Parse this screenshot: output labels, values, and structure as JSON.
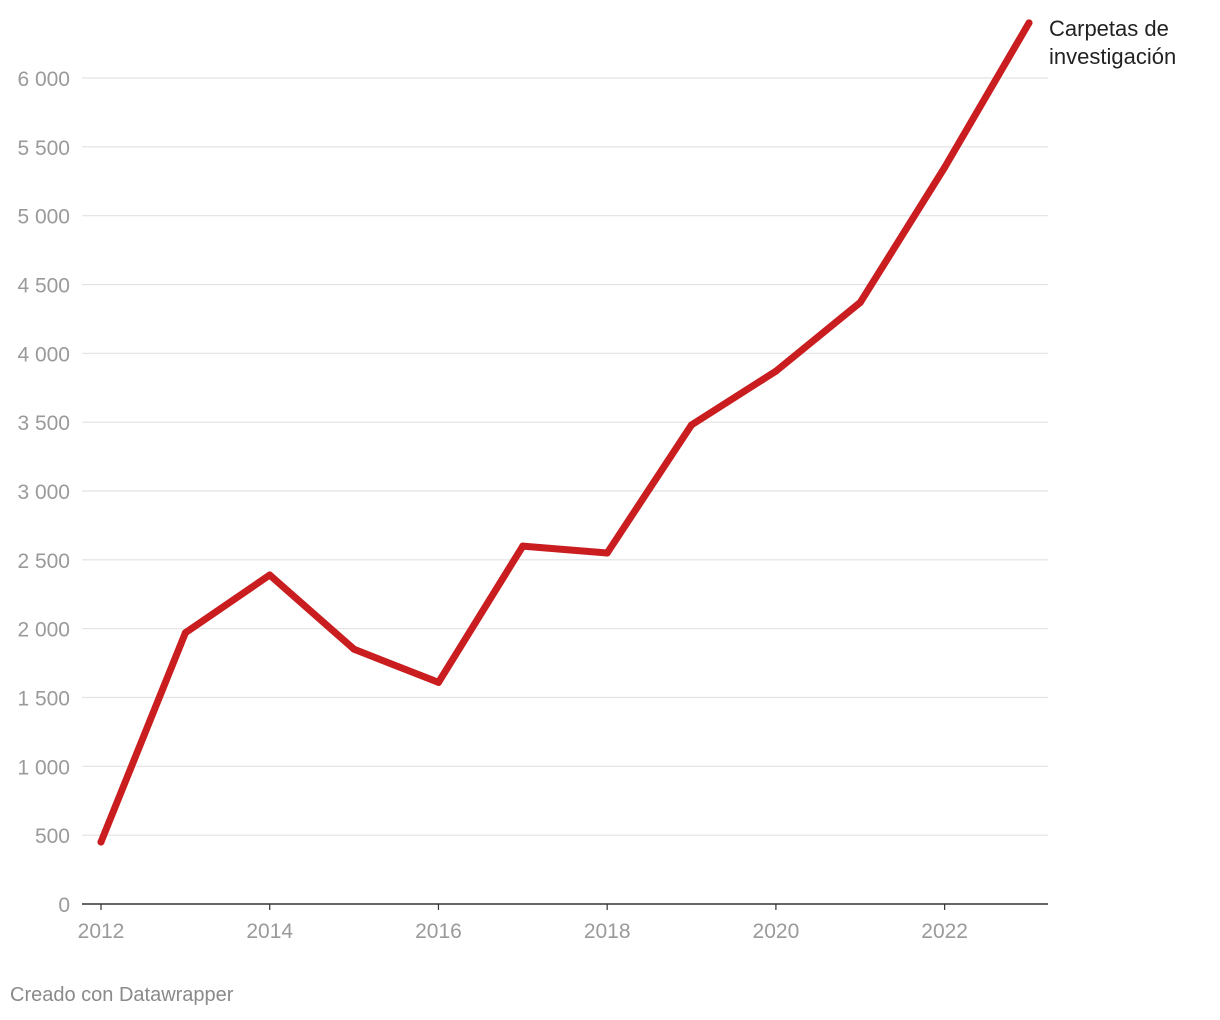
{
  "chart_data": {
    "type": "line",
    "title": "",
    "xlabel": "",
    "ylabel": "",
    "x": [
      2012,
      2013,
      2014,
      2015,
      2016,
      2017,
      2018,
      2019,
      2020,
      2021,
      2022,
      2023
    ],
    "series": [
      {
        "name": "Carpetas de investigación",
        "label_lines": [
          "Carpetas de",
          "investigación"
        ],
        "values": [
          450,
          1970,
          2390,
          1850,
          1610,
          2600,
          2550,
          3480,
          3870,
          4370,
          5350,
          6400
        ],
        "color": "#c91d1f"
      }
    ],
    "xlim": [
      2012,
      2023.2
    ],
    "ylim": [
      0,
      6000
    ],
    "x_ticks": [
      2012,
      2014,
      2016,
      2018,
      2020,
      2022
    ],
    "x_tick_labels": [
      "2012",
      "2014",
      "2016",
      "2018",
      "2020",
      "2022"
    ],
    "y_ticks": [
      0,
      500,
      1000,
      1500,
      2000,
      2500,
      3000,
      3500,
      4000,
      4500,
      5000,
      5500,
      6000
    ],
    "y_tick_labels": [
      "0",
      "500",
      "1 000",
      "1 500",
      "2 000",
      "2 500",
      "3 000",
      "3 500",
      "4 000",
      "4 500",
      "5 000",
      "5 500",
      "6 000"
    ],
    "grid": true,
    "legend": "direct label at end of line"
  },
  "footer": {
    "credit": "Creado con Datawrapper"
  },
  "colors": {
    "grid": "#e2e2e2",
    "axis": "#333333",
    "tick_text": "#9a9a9a"
  }
}
